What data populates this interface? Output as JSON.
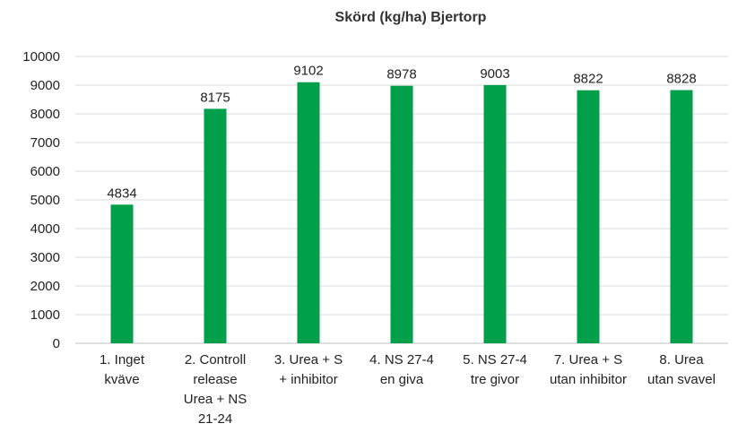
{
  "chart_data": {
    "type": "bar",
    "title": "Skörd (kg/ha) Bjertorp",
    "xlabel": "",
    "ylabel": "",
    "ylim": [
      0,
      10000
    ],
    "yticks": [
      0,
      1000,
      2000,
      3000,
      4000,
      5000,
      6000,
      7000,
      8000,
      9000,
      10000
    ],
    "grid": true,
    "legend": "none",
    "categories": [
      [
        "1. Inget",
        "kväve"
      ],
      [
        "2. Controll",
        "release",
        "Urea + NS",
        "21-24"
      ],
      [
        "3. Urea + S",
        "+ inhibitor"
      ],
      [
        "4. NS 27-4",
        "en giva"
      ],
      [
        "5. NS 27-4",
        "tre givor"
      ],
      [
        "7. Urea + S",
        "utan inhibitor"
      ],
      [
        "8. Urea",
        "utan svavel"
      ]
    ],
    "values": [
      4834,
      8175,
      9102,
      8978,
      9003,
      8822,
      8828
    ],
    "data_labels": [
      "4834",
      "8175",
      "9102",
      "8978",
      "9003",
      "8822",
      "8828"
    ],
    "bar_color": "#00a04a"
  }
}
